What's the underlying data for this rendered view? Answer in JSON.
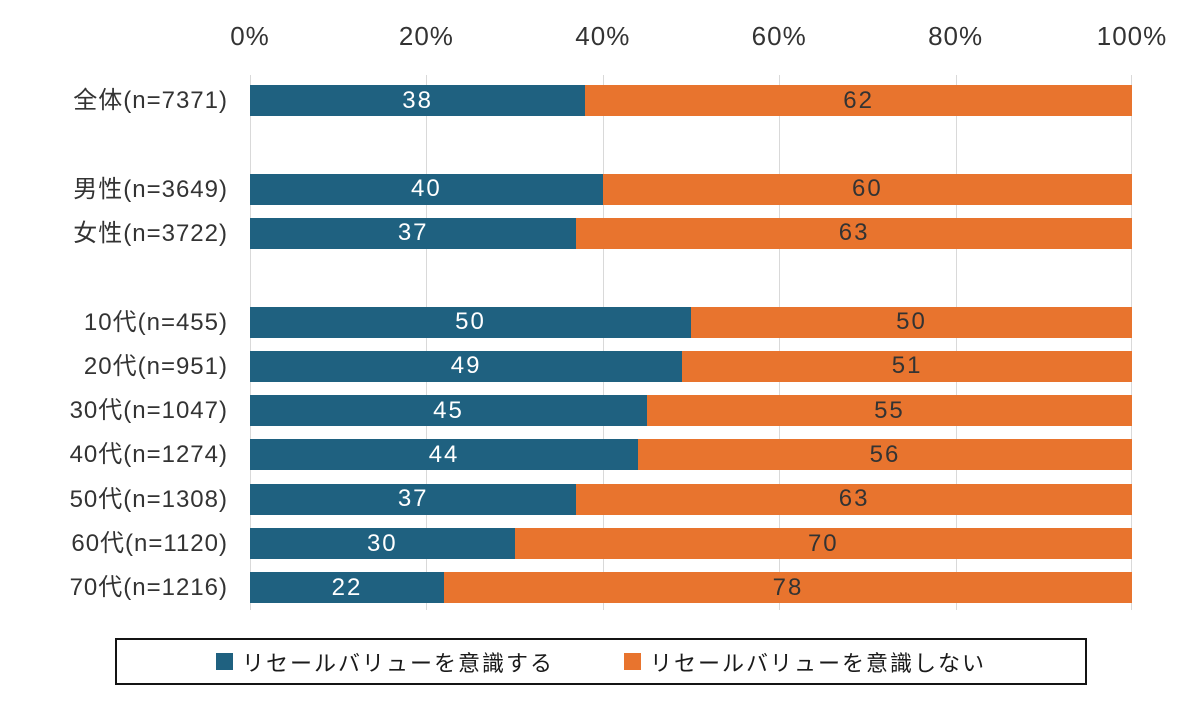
{
  "chart_data": {
    "type": "bar",
    "orientation": "horizontal",
    "stacked": true,
    "grid": "vertical-only",
    "x_axis": {
      "ticks": [
        "0%",
        "20%",
        "40%",
        "60%",
        "80%",
        "100%"
      ],
      "range": [
        0,
        100
      ]
    },
    "series": [
      {
        "name": "リセールバリューを意識する",
        "color": "#1f6180",
        "label_color": "#ffffff"
      },
      {
        "name": "リセールバリューを意識しない",
        "color": "#e8742e",
        "label_color": "#333333"
      }
    ],
    "groups": [
      {
        "rows": [
          {
            "label": "全体(n=7371)",
            "values": [
              38,
              62
            ]
          }
        ]
      },
      {
        "rows": [
          {
            "label": "男性(n=3649)",
            "values": [
              40,
              60
            ]
          },
          {
            "label": "女性(n=3722)",
            "values": [
              37,
              63
            ]
          }
        ]
      },
      {
        "rows": [
          {
            "label": "10代(n=455)",
            "values": [
              50,
              50
            ]
          },
          {
            "label": "20代(n=951)",
            "values": [
              49,
              51
            ]
          },
          {
            "label": "30代(n=1047)",
            "values": [
              45,
              55
            ]
          },
          {
            "label": "40代(n=1274)",
            "values": [
              44,
              56
            ]
          },
          {
            "label": "50代(n=1308)",
            "values": [
              37,
              63
            ]
          },
          {
            "label": "60代(n=1120)",
            "values": [
              30,
              70
            ]
          },
          {
            "label": "70代(n=1216)",
            "values": [
              22,
              78
            ]
          }
        ]
      }
    ],
    "legend": {
      "position": "bottom",
      "bordered": true
    },
    "colors": {
      "gridline": "#d9d9d9",
      "axis_text": "#333333",
      "legend_border": "#141414"
    }
  }
}
